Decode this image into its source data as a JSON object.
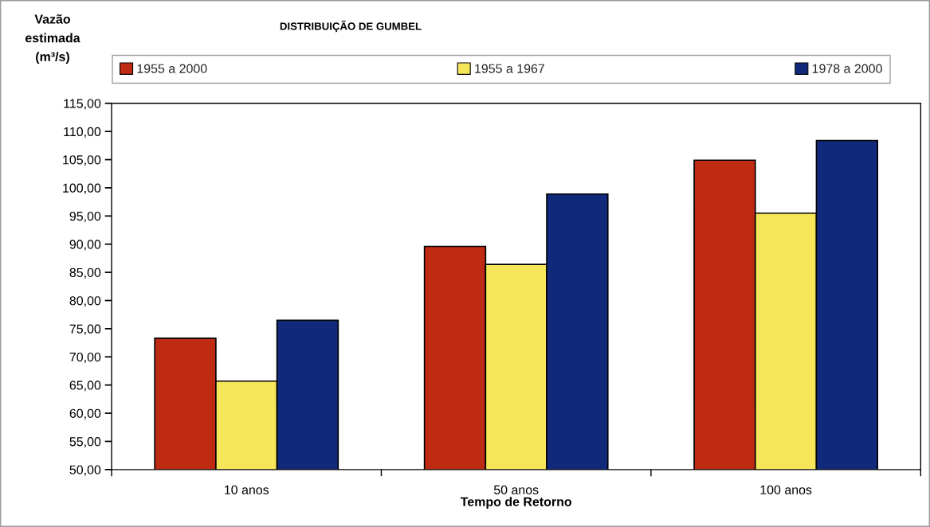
{
  "chart_data": {
    "type": "bar",
    "title": "DISTRIBUIÇÃO DE GUMBEL",
    "xlabel": "Tempo de Retorno",
    "ylabel": "Vazão\nestimada\n(m³/s)",
    "categories": [
      "10 anos",
      "50 anos",
      "100 anos"
    ],
    "series": [
      {
        "name": "1955 a 2000",
        "color": "#bf2a12",
        "values": [
          73.3,
          89.6,
          104.9
        ]
      },
      {
        "name": "1955 a 1967",
        "color": "#f6e65a",
        "values": [
          65.7,
          86.4,
          95.5
        ]
      },
      {
        "name": "1978 a 2000",
        "color": "#10297a",
        "values": [
          76.5,
          98.9,
          108.4
        ]
      }
    ],
    "ylim": [
      50,
      115
    ],
    "yticks": [
      {
        "value": 50,
        "label": "50,00"
      },
      {
        "value": 55,
        "label": "55,00"
      },
      {
        "value": 60,
        "label": "60,00"
      },
      {
        "value": 65,
        "label": "65,00"
      },
      {
        "value": 70,
        "label": "70,00"
      },
      {
        "value": 75,
        "label": "75,00"
      },
      {
        "value": 80,
        "label": "80,00"
      },
      {
        "value": 85,
        "label": "85,00"
      },
      {
        "value": 90,
        "label": "90,00"
      },
      {
        "value": 95,
        "label": "95,00"
      },
      {
        "value": 100,
        "label": "100,00"
      },
      {
        "value": 105,
        "label": "105,00"
      },
      {
        "value": 110,
        "label": "110,00"
      },
      {
        "value": 115,
        "label": "115,00"
      }
    ],
    "legend": "top",
    "grid": false
  }
}
